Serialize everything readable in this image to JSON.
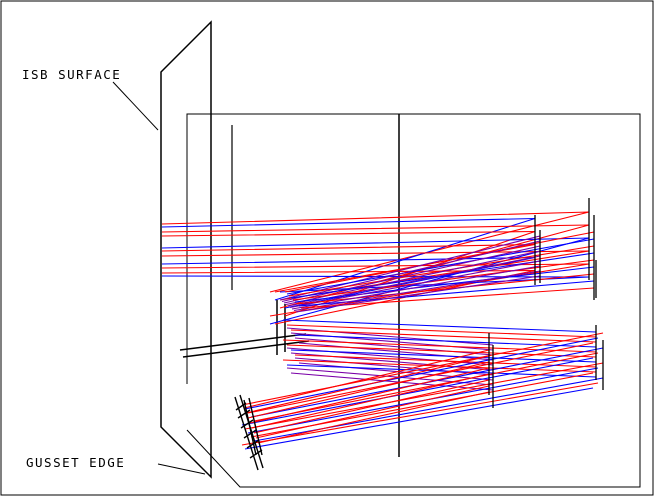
{
  "labels": {
    "surface": "ISB SURFACE",
    "edge": "GUSSET EDGE"
  },
  "colors": {
    "ray_primary": "#ff0000",
    "ray_secondary": "#0000ff",
    "ray_mixed": "#7a00a8",
    "structure": "#000000",
    "background": "#ffffff"
  }
}
